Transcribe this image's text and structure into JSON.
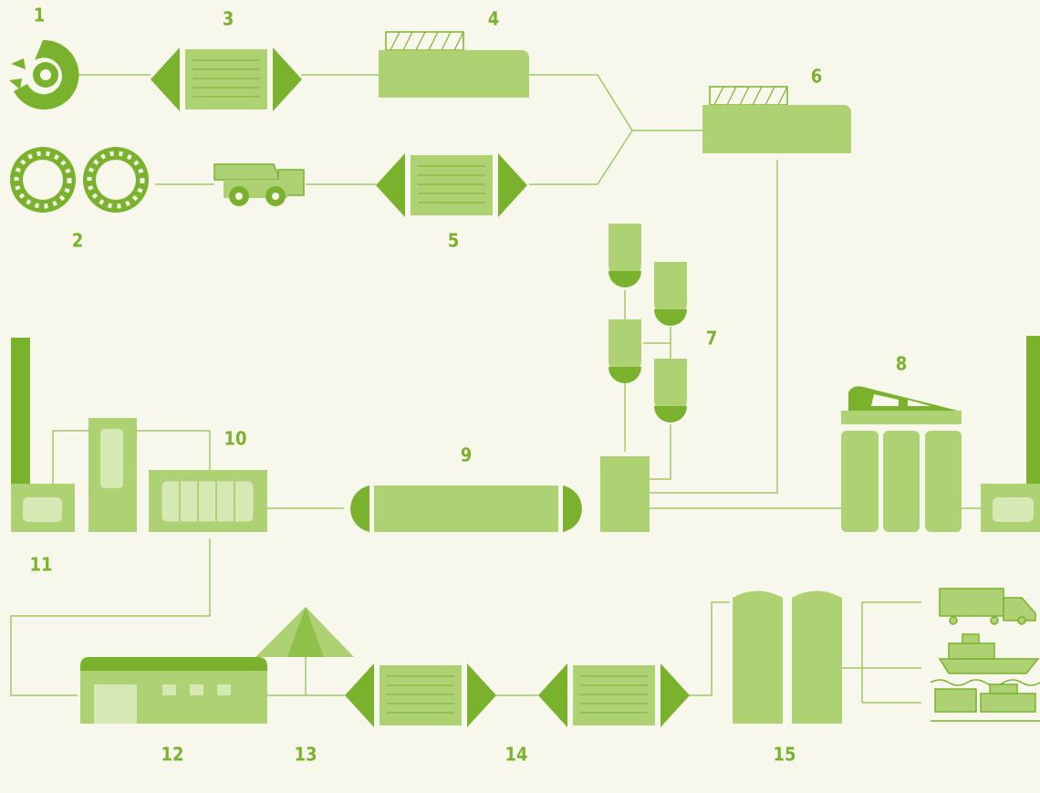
{
  "labels": [
    "1",
    "2",
    "3",
    "4",
    "5",
    "6",
    "7",
    "8",
    "9",
    "10",
    "11",
    "12",
    "13",
    "14",
    "15"
  ]
}
